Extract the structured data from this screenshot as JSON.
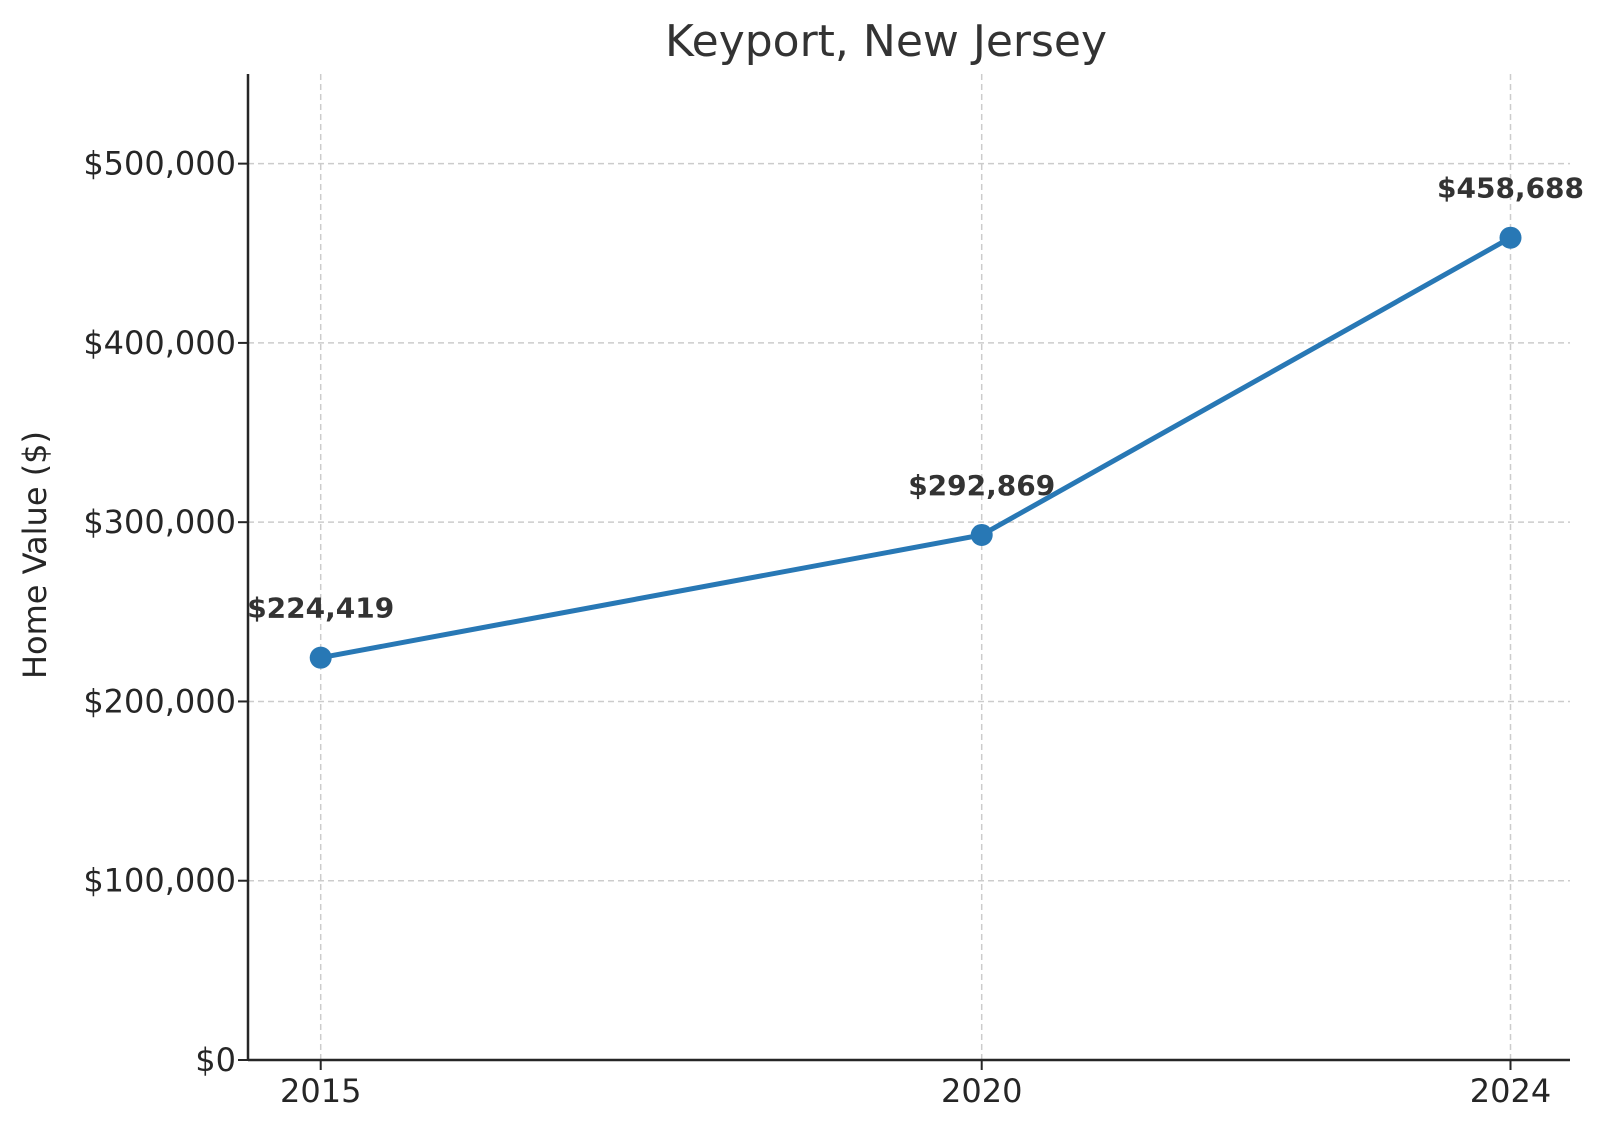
{
  "chart_data": {
    "type": "line",
    "title": "Keyport, New Jersey",
    "xlabel": "",
    "ylabel": "Home Value ($)",
    "categories": [
      "2015",
      "2020",
      "2024"
    ],
    "x": [
      2015,
      2020,
      2024
    ],
    "xlim": [
      2014.45,
      2024.45
    ],
    "ylim": [
      0,
      550000
    ],
    "yticks": [
      0,
      100000,
      200000,
      300000,
      400000,
      500000
    ],
    "ytick_labels": [
      "$0",
      "$100,000",
      "$200,000",
      "$300,000",
      "$400,000",
      "$500,000"
    ],
    "series": [
      {
        "values": [
          224419,
          292869,
          458688
        ],
        "data_labels": [
          "$224,419",
          "$292,869",
          "$458,688"
        ],
        "color": "#2878b5"
      }
    ],
    "grid": true,
    "legend": "none"
  }
}
